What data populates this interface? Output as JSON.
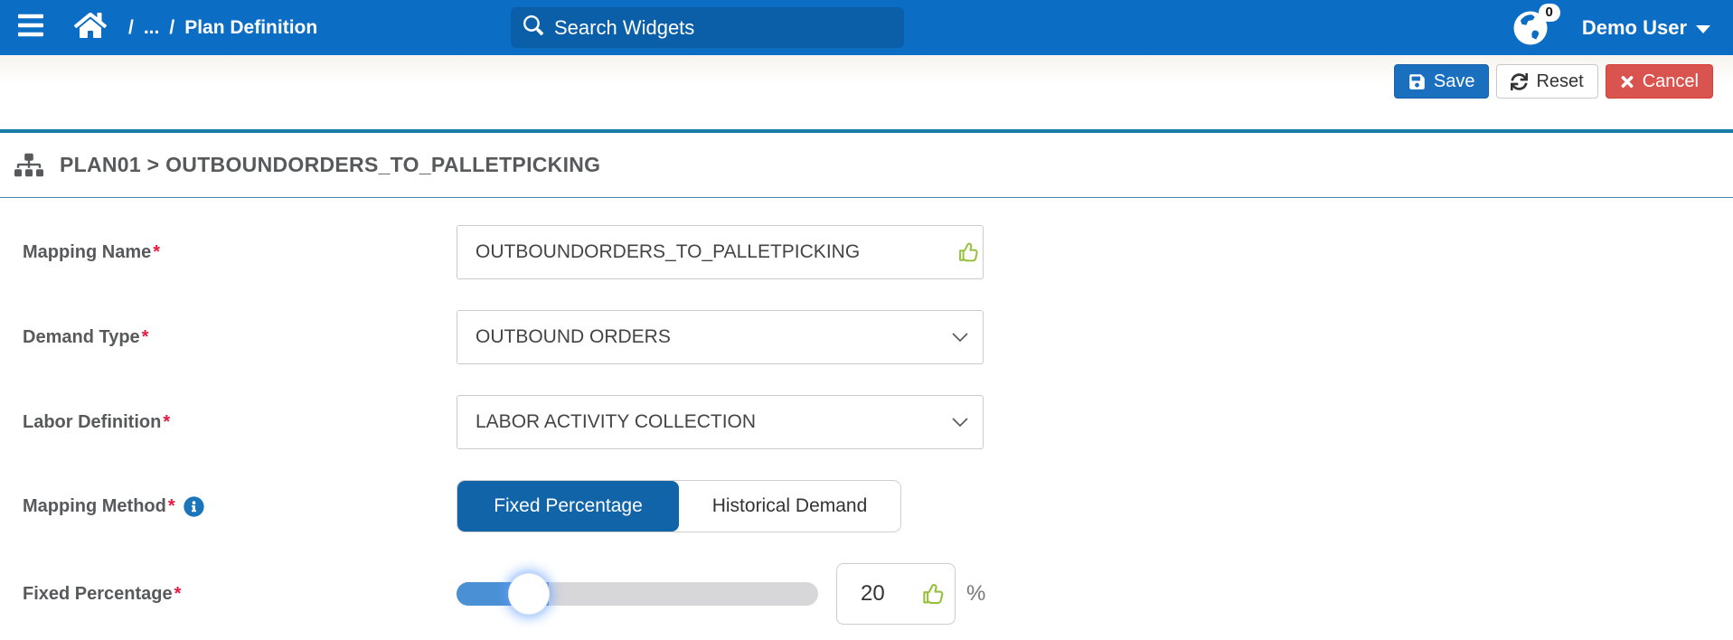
{
  "header": {
    "breadcrumb": {
      "separator": "/",
      "collapsed": "...",
      "current": "Plan Definition"
    },
    "search_placeholder": "Search Widgets",
    "notification_count": "0",
    "user_name": "Demo User"
  },
  "toolbar": {
    "save_label": "Save",
    "reset_label": "Reset",
    "cancel_label": "Cancel"
  },
  "page": {
    "title": "PLAN01 > OUTBOUNDORDERS_TO_PALLETPICKING"
  },
  "form": {
    "required_marker": "*",
    "mapping_name": {
      "label": "Mapping Name",
      "value": "OUTBOUNDORDERS_TO_PALLETPICKING"
    },
    "demand_type": {
      "label": "Demand Type",
      "value": "OUTBOUND ORDERS"
    },
    "labor_definition": {
      "label": "Labor Definition",
      "value": "LABOR ACTIVITY COLLECTION"
    },
    "mapping_method": {
      "label": "Mapping Method",
      "selected": "Fixed Percentage",
      "options": [
        {
          "label": "Fixed Percentage",
          "active": true
        },
        {
          "label": "Historical Demand",
          "active": false
        }
      ]
    },
    "fixed_percentage": {
      "label": "Fixed Percentage",
      "value": "20",
      "unit": "%",
      "slider_percent": 20
    }
  },
  "icons": {
    "menu": "hamburger-bars",
    "home": "house",
    "search": "magnifier",
    "notifications": "globe with 0 badge",
    "user_caret": "caret-down",
    "save": "floppy-disk",
    "reset": "sync-arrows",
    "cancel": "times-x",
    "title": "sitemap-hierarchy",
    "mapping_method_help": "info-circle",
    "validation": "thumbs-up"
  },
  "colors": {
    "header_blue": "#0b6dc4",
    "search_bg": "#0b5fa8",
    "save_blue": "#1b6fbf",
    "cancel_red": "#d9534f",
    "divider_teal": "#1b7ba7",
    "toggle_active_blue": "#1264a9",
    "slider_fill_blue": "#4a90d5",
    "validation_green": "#97c13c",
    "label_gray": "#58595b",
    "required_red": "#e8193c",
    "info_blue": "#1b75bb"
  }
}
